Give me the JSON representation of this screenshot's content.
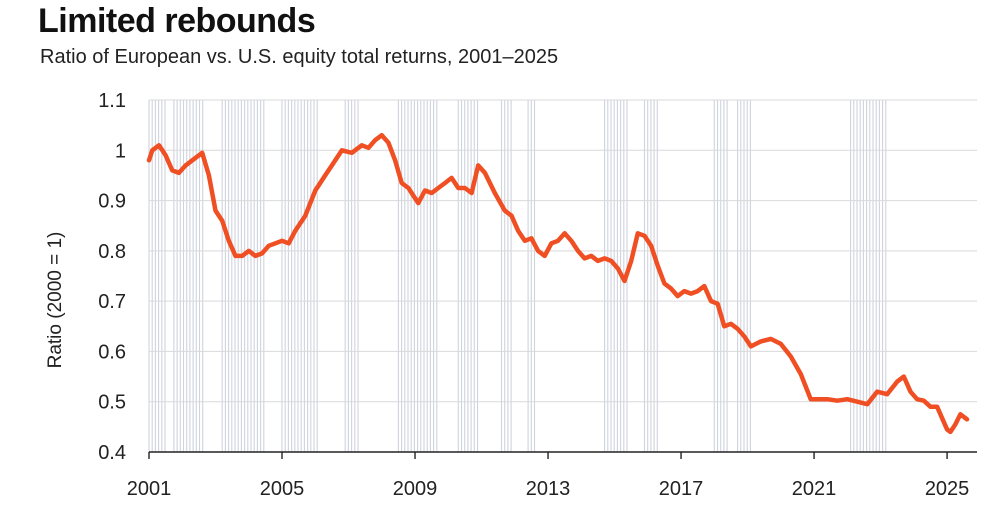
{
  "title": "Limited rebounds",
  "subtitle": "Ratio of European vs. U.S. equity total returns, 2001–2025",
  "chart_data": {
    "type": "line",
    "title": "Limited rebounds",
    "subtitle": "Ratio of European vs. U.S. equity total returns, 2001–2025",
    "xlabel": "",
    "ylabel": "Ratio (2000 = 1)",
    "xlim": [
      2001,
      2025.9
    ],
    "ylim": [
      0.4,
      1.1
    ],
    "y_ticks": [
      1.1,
      1,
      0.9,
      0.8,
      0.7,
      0.6,
      0.5,
      0.4
    ],
    "y_tick_labels": [
      "1.1",
      "1",
      "0.9",
      "0.8",
      "0.7",
      "0.6",
      "0.5",
      "0.4"
    ],
    "x_ticks": [
      2001,
      2005,
      2009,
      2013,
      2017,
      2021,
      2025
    ],
    "x_tick_labels": [
      "2001",
      "2005",
      "2009",
      "2013",
      "2017",
      "2021",
      "2025"
    ],
    "grid": true,
    "line_color": "#f04e23",
    "shade_color": "#cfd3de",
    "shaded_periods": [
      [
        2001.0,
        2001.5
      ],
      [
        2001.75,
        2002.7
      ],
      [
        2003.2,
        2004.5
      ],
      [
        2005.0,
        2006.1
      ],
      [
        2006.9,
        2007.3
      ],
      [
        2008.5,
        2009.7
      ],
      [
        2010.3,
        2010.9
      ],
      [
        2011.6,
        2011.9
      ],
      [
        2012.4,
        2012.6
      ],
      [
        2014.7,
        2015.45
      ],
      [
        2015.9,
        2016.3
      ],
      [
        2018.0,
        2018.4
      ],
      [
        2018.7,
        2019.1
      ],
      [
        2022.1,
        2023.2
      ]
    ],
    "series": [
      {
        "name": "Ratio of European vs. U.S. equity total returns",
        "x": [
          2001.0,
          2001.1,
          2001.3,
          2001.5,
          2001.7,
          2001.9,
          2002.1,
          2002.4,
          2002.6,
          2002.8,
          2003.0,
          2003.2,
          2003.4,
          2003.6,
          2003.8,
          2004.0,
          2004.2,
          2004.4,
          2004.6,
          2004.8,
          2005.0,
          2005.2,
          2005.4,
          2005.7,
          2006.0,
          2006.3,
          2006.5,
          2006.8,
          2007.1,
          2007.4,
          2007.6,
          2007.8,
          2008.0,
          2008.2,
          2008.4,
          2008.6,
          2008.8,
          2009.0,
          2009.1,
          2009.3,
          2009.5,
          2009.7,
          2009.9,
          2010.1,
          2010.3,
          2010.5,
          2010.7,
          2010.9,
          2011.1,
          2011.4,
          2011.7,
          2011.9,
          2012.1,
          2012.3,
          2012.5,
          2012.7,
          2012.9,
          2013.1,
          2013.3,
          2013.5,
          2013.7,
          2013.9,
          2014.1,
          2014.3,
          2014.5,
          2014.7,
          2014.9,
          2015.1,
          2015.3,
          2015.5,
          2015.7,
          2015.9,
          2016.1,
          2016.3,
          2016.5,
          2016.7,
          2016.9,
          2017.1,
          2017.3,
          2017.5,
          2017.7,
          2017.9,
          2018.1,
          2018.3,
          2018.5,
          2018.7,
          2018.9,
          2019.1,
          2019.4,
          2019.7,
          2020.0,
          2020.3,
          2020.6,
          2020.9,
          2021.1,
          2021.4,
          2021.7,
          2022.0,
          2022.3,
          2022.6,
          2022.9,
          2023.2,
          2023.5,
          2023.7,
          2023.9,
          2024.1,
          2024.3,
          2024.5,
          2024.7,
          2024.9,
          2025.0,
          2025.1,
          2025.25,
          2025.4,
          2025.6
        ],
        "values": [
          0.98,
          1.0,
          1.01,
          0.99,
          0.96,
          0.955,
          0.97,
          0.985,
          0.995,
          0.95,
          0.88,
          0.86,
          0.82,
          0.79,
          0.79,
          0.8,
          0.79,
          0.795,
          0.81,
          0.815,
          0.82,
          0.815,
          0.84,
          0.87,
          0.92,
          0.95,
          0.97,
          1.0,
          0.995,
          1.01,
          1.005,
          1.02,
          1.03,
          1.015,
          0.98,
          0.935,
          0.925,
          0.905,
          0.895,
          0.92,
          0.915,
          0.925,
          0.935,
          0.945,
          0.925,
          0.925,
          0.915,
          0.97,
          0.955,
          0.915,
          0.88,
          0.87,
          0.84,
          0.82,
          0.825,
          0.8,
          0.79,
          0.815,
          0.82,
          0.835,
          0.82,
          0.8,
          0.785,
          0.79,
          0.78,
          0.785,
          0.78,
          0.765,
          0.74,
          0.78,
          0.835,
          0.83,
          0.81,
          0.77,
          0.735,
          0.725,
          0.71,
          0.72,
          0.715,
          0.72,
          0.73,
          0.7,
          0.695,
          0.65,
          0.655,
          0.645,
          0.63,
          0.61,
          0.62,
          0.625,
          0.615,
          0.59,
          0.555,
          0.505,
          0.505,
          0.505,
          0.502,
          0.505,
          0.5,
          0.495,
          0.52,
          0.515,
          0.54,
          0.55,
          0.52,
          0.505,
          0.502,
          0.49,
          0.49,
          0.46,
          0.445,
          0.44,
          0.455,
          0.475,
          0.465
        ]
      }
    ]
  }
}
